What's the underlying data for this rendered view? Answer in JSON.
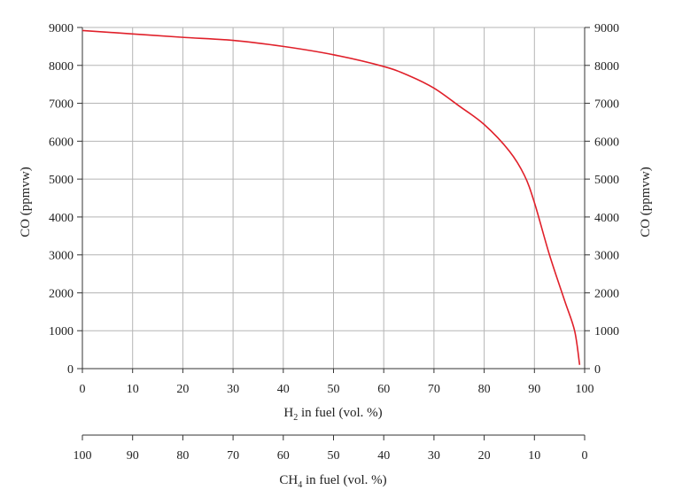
{
  "chart_data": {
    "type": "line",
    "x_axis": {
      "label_main": "H",
      "label_sub": "2",
      "label_rest": " in fuel (vol. %)",
      "range": [
        0,
        100
      ],
      "ticks": [
        0,
        10,
        20,
        30,
        40,
        50,
        60,
        70,
        80,
        90,
        100
      ]
    },
    "secondary_x_axis": {
      "label_main": "CH",
      "label_sub": "4",
      "label_rest": " in fuel (vol. %)",
      "range": [
        100,
        0
      ],
      "ticks": [
        100,
        90,
        80,
        70,
        60,
        50,
        40,
        30,
        20,
        10,
        0
      ]
    },
    "y_axis": {
      "label": "CO (ppmvw)",
      "range": [
        0,
        9000
      ],
      "ticks": [
        0,
        1000,
        2000,
        3000,
        4000,
        5000,
        6000,
        7000,
        8000,
        9000
      ]
    },
    "y_axis_right": {
      "label": "CO (ppmvw)",
      "range": [
        0,
        9000
      ],
      "ticks": [
        0,
        1000,
        2000,
        3000,
        4000,
        5000,
        6000,
        7000,
        8000,
        9000
      ]
    },
    "grid": true,
    "series": [
      {
        "color": "#e0202a",
        "x": [
          0,
          10,
          20,
          30,
          40,
          50,
          60,
          65,
          70,
          75,
          80,
          85,
          88,
          90,
          93,
          96,
          98,
          99
        ],
        "y": [
          8920,
          8830,
          8740,
          8660,
          8500,
          8280,
          7970,
          7730,
          7400,
          6930,
          6440,
          5740,
          5100,
          4380,
          3000,
          1800,
          1000,
          100
        ]
      }
    ]
  }
}
